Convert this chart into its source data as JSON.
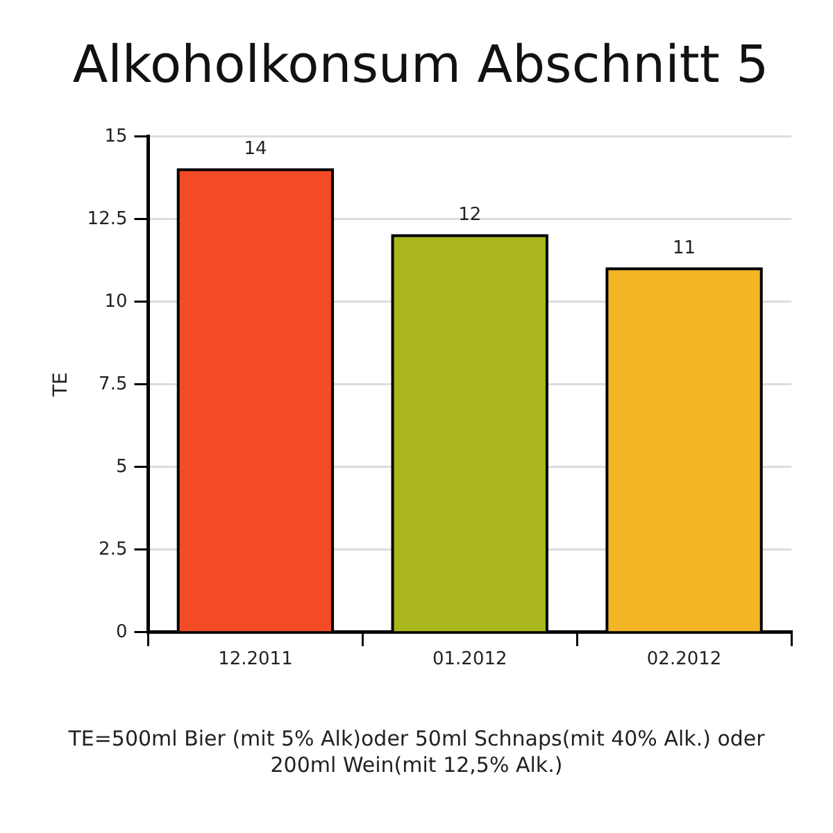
{
  "chart_data": {
    "type": "bar",
    "title": "Alkoholkonsum Abschnitt 5",
    "ylabel": "TE",
    "categories": [
      "12.2011",
      "01.2012",
      "02.2012"
    ],
    "values": [
      14,
      12,
      11
    ],
    "colors": [
      "#f44b27",
      "#a9b71c",
      "#f3b526"
    ],
    "ylim": [
      0,
      15
    ],
    "yticks": [
      0,
      2.5,
      5,
      7.5,
      10,
      12.5,
      15
    ],
    "grid": "y",
    "data_labels": true,
    "annotations": [
      "TE=500ml Bier (mit 5% Alk)oder 50ml Schnaps(mit 40% Alk.) oder 200ml Wein(mit 12,5% Alk.)"
    ]
  }
}
